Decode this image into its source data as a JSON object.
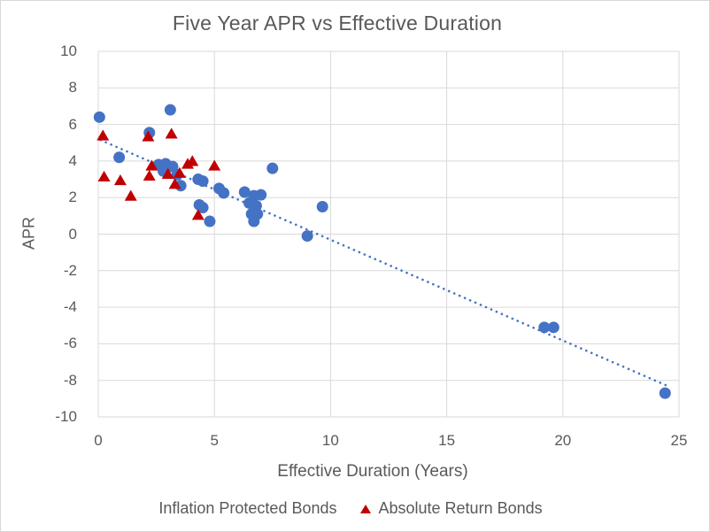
{
  "chart_data": {
    "type": "scatter",
    "title": "Five Year APR vs Effective Duration",
    "xlabel": "Effective Duration (Years)",
    "ylabel": "APR",
    "xlim": [
      0,
      25
    ],
    "ylim": [
      -10,
      10
    ],
    "x_ticks": [
      0,
      5,
      10,
      15,
      20,
      25
    ],
    "y_ticks": [
      10,
      8,
      6,
      4,
      2,
      0,
      -2,
      -4,
      -6,
      -8,
      -10
    ],
    "grid": true,
    "legend_position": "bottom",
    "series": [
      {
        "name": "Inflation Protected Bonds",
        "marker": "circle",
        "color": "#4472c4",
        "points": [
          [
            0.05,
            6.4
          ],
          [
            3.1,
            6.8
          ],
          [
            2.2,
            5.55
          ],
          [
            0.9,
            4.2
          ],
          [
            2.6,
            3.8
          ],
          [
            2.9,
            3.85
          ],
          [
            3.2,
            3.7
          ],
          [
            2.8,
            3.45
          ],
          [
            3.4,
            3.25
          ],
          [
            3.55,
            2.65
          ],
          [
            4.3,
            3.0
          ],
          [
            4.5,
            2.9
          ],
          [
            5.2,
            2.5
          ],
          [
            5.4,
            2.25
          ],
          [
            6.3,
            2.3
          ],
          [
            6.7,
            2.1
          ],
          [
            7.0,
            2.15
          ],
          [
            6.5,
            1.7
          ],
          [
            6.8,
            1.55
          ],
          [
            6.6,
            1.1
          ],
          [
            6.85,
            1.1
          ],
          [
            6.7,
            0.7
          ],
          [
            4.35,
            1.6
          ],
          [
            4.5,
            1.45
          ],
          [
            4.8,
            0.7
          ],
          [
            7.5,
            3.6
          ],
          [
            9.65,
            1.5
          ],
          [
            9.0,
            -0.1
          ],
          [
            19.2,
            -5.1
          ],
          [
            19.6,
            -5.1
          ],
          [
            24.4,
            -8.7
          ]
        ]
      },
      {
        "name": "Absolute Return Bonds",
        "marker": "triangle",
        "color": "#c00000",
        "points": [
          [
            0.2,
            5.4
          ],
          [
            2.15,
            5.35
          ],
          [
            3.15,
            5.5
          ],
          [
            0.25,
            3.15
          ],
          [
            0.95,
            2.95
          ],
          [
            1.4,
            2.1
          ],
          [
            2.3,
            3.75
          ],
          [
            2.2,
            3.2
          ],
          [
            3.0,
            3.3
          ],
          [
            3.5,
            3.35
          ],
          [
            3.3,
            2.75
          ],
          [
            3.85,
            3.85
          ],
          [
            4.05,
            4.0
          ],
          [
            5.0,
            3.75
          ],
          [
            4.3,
            1.05
          ]
        ]
      }
    ],
    "trendline": {
      "style": "dotted",
      "color": "#4472c4",
      "from": [
        0.1,
        5.15
      ],
      "to": [
        24.5,
        -8.3
      ]
    }
  },
  "colors": {
    "grid": "#d9d9d9",
    "text": "#595959",
    "blue_series": "#4472c4",
    "red_series": "#c00000"
  }
}
